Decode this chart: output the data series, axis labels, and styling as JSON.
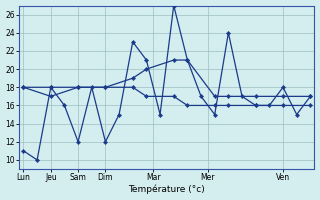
{
  "background_color": "#d4edef",
  "grid_color": "#9bbfbf",
  "line_color": "#1a3a8a",
  "marker_color": "#1a3a8a",
  "xlabel": "Température (°c)",
  "ylim": [
    9,
    27
  ],
  "yticks": [
    10,
    12,
    14,
    16,
    18,
    20,
    22,
    24,
    26
  ],
  "xtick_labels": [
    "Lun",
    "Jeu",
    "Sam",
    "Dim",
    "Mar",
    "Mer",
    "Ven"
  ],
  "series1_x": [
    0,
    1,
    2,
    3,
    4,
    5,
    6,
    7,
    8,
    9,
    10,
    11,
    12,
    13,
    14,
    15,
    16,
    17,
    18,
    19,
    20,
    21
  ],
  "series1_y": [
    11,
    10,
    18,
    16,
    12,
    18,
    12,
    15,
    23,
    21,
    15,
    27,
    21,
    17,
    15,
    24,
    17,
    16,
    16,
    18,
    15,
    17
  ],
  "series2_x": [
    0,
    2,
    4,
    6,
    8,
    9,
    11,
    12,
    14,
    15,
    17,
    19,
    21
  ],
  "series2_y": [
    18,
    18,
    18,
    18,
    19,
    20,
    21,
    21,
    17,
    17,
    17,
    17,
    17
  ],
  "series3_x": [
    0,
    2,
    4,
    6,
    8,
    9,
    11,
    12,
    14,
    15,
    17,
    19,
    21
  ],
  "series3_y": [
    18,
    17,
    18,
    18,
    18,
    17,
    17,
    16,
    16,
    16,
    16,
    16,
    16
  ],
  "n_total": 22,
  "xlim": [
    -0.3,
    21.3
  ],
  "xtick_x": [
    0,
    2,
    4,
    6,
    9.5,
    13.5,
    19
  ]
}
